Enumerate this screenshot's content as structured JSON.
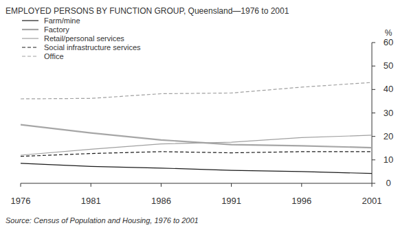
{
  "chart_data": {
    "type": "line",
    "title": "EMPLOYED PERSONS BY FUNCTION GROUP, Queensland—1976 to 2001",
    "y_label": "%",
    "source": "Source: Census of Population and Housing, 1976 to 2001",
    "x": [
      1976,
      1981,
      1986,
      1991,
      1996,
      2001
    ],
    "xlim": [
      1976,
      2001
    ],
    "xticks": [
      1976,
      1981,
      1986,
      1991,
      1996,
      2001
    ],
    "ylim": [
      0,
      60
    ],
    "yticks": [
      0,
      10,
      20,
      30,
      40,
      50,
      60
    ],
    "grid": false,
    "legend": "upper-left",
    "series": [
      {
        "name": "Farm/mine",
        "color": "#1a1a1a",
        "line_style": "solid",
        "values": [
          8.5,
          7.2,
          6.5,
          5.5,
          5.0,
          4.2
        ]
      },
      {
        "name": "Factory",
        "color": "#a6a6a6",
        "line_style": "solid",
        "values": [
          25.0,
          21.5,
          18.5,
          16.5,
          16.0,
          15.2
        ]
      },
      {
        "name": "Retail/personal services",
        "color": "#a0a0a0",
        "line_style": "solid",
        "values": [
          12.0,
          14.5,
          16.8,
          17.5,
          19.5,
          20.5
        ]
      },
      {
        "name": "Social infrastructure services",
        "color": "#1a1a1a",
        "line_style": "dashed",
        "values": [
          11.5,
          12.7,
          13.5,
          13.0,
          13.5,
          13.5
        ]
      },
      {
        "name": "Office",
        "color": "#a0a0a0",
        "line_style": "dashed",
        "values": [
          36.0,
          36.2,
          38.2,
          38.5,
          41.0,
          43.0
        ]
      }
    ]
  }
}
